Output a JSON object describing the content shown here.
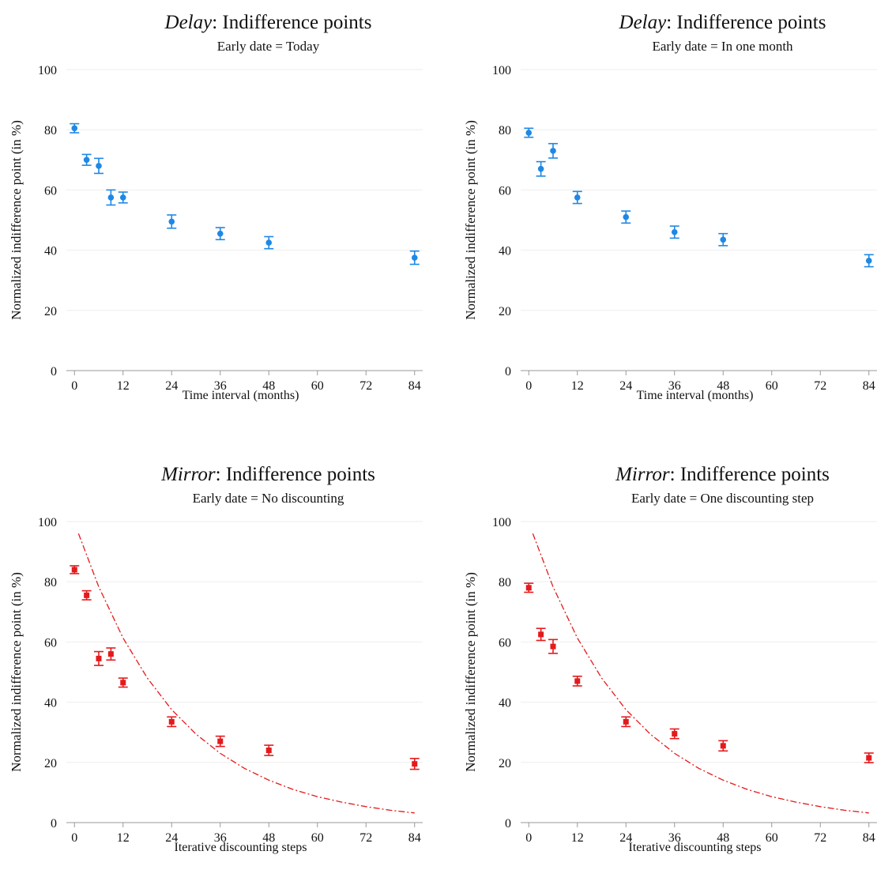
{
  "chart_data": [
    {
      "type": "scatter",
      "title_italic": "Delay",
      "title": ": Indifference points",
      "subtitle": "Early date = Today",
      "xlabel": "Time interval (months)",
      "ylabel": "Normalized indifference point (in %)",
      "xlim": [
        -2,
        86
      ],
      "ylim": [
        0,
        100
      ],
      "xticks": [
        0,
        12,
        24,
        36,
        48,
        60,
        72,
        84
      ],
      "yticks": [
        0,
        20,
        40,
        60,
        80,
        100
      ],
      "grid": true,
      "series": [
        {
          "color": "#1e88e5",
          "marker": "circle",
          "x": [
            0,
            3,
            6,
            9,
            12,
            24,
            36,
            48,
            84
          ],
          "values": [
            80.5,
            70,
            68,
            57.5,
            57.5,
            49.5,
            45.5,
            42.5,
            37.5
          ],
          "errors": [
            1.5,
            1.8,
            2.5,
            2.5,
            1.8,
            2.2,
            2,
            2,
            2.2
          ]
        }
      ]
    },
    {
      "type": "scatter",
      "title_italic": "Delay",
      "title": ": Indifference points",
      "subtitle": "Early date = In one month",
      "xlabel": "Time interval (months)",
      "ylabel": "Normalized indifference point (in %)",
      "xlim": [
        -2,
        86
      ],
      "ylim": [
        0,
        100
      ],
      "xticks": [
        0,
        12,
        24,
        36,
        48,
        60,
        72,
        84
      ],
      "yticks": [
        0,
        20,
        40,
        60,
        80,
        100
      ],
      "grid": true,
      "series": [
        {
          "color": "#1e88e5",
          "marker": "circle",
          "x": [
            0,
            3,
            6,
            12,
            24,
            36,
            48,
            84
          ],
          "values": [
            79,
            67,
            73,
            57.5,
            51,
            46,
            43.5,
            36.5
          ],
          "errors": [
            1.5,
            2.4,
            2.4,
            2,
            2,
            2,
            2,
            2
          ]
        }
      ]
    },
    {
      "type": "scatter",
      "title_italic": "Mirror",
      "title": ": Indifference points",
      "subtitle": "Early date = No discounting",
      "xlabel": "Iterative discounting steps",
      "ylabel": "Normalized indifference point (in %)",
      "xlim": [
        -2,
        86
      ],
      "ylim": [
        0,
        100
      ],
      "xticks": [
        0,
        12,
        24,
        36,
        48,
        60,
        72,
        84
      ],
      "yticks": [
        0,
        20,
        40,
        60,
        80,
        100
      ],
      "grid": true,
      "series": [
        {
          "color": "#e41a1c",
          "marker": "square",
          "x": [
            0,
            3,
            6,
            9,
            12,
            24,
            36,
            48,
            84
          ],
          "values": [
            84,
            75.5,
            54.5,
            56,
            46.5,
            33.5,
            27,
            24,
            19.5
          ],
          "errors": [
            1.3,
            1.5,
            2.3,
            2,
            1.5,
            1.6,
            1.7,
            1.7,
            1.8
          ]
        }
      ],
      "curve": {
        "color": "#e41a1c",
        "x": [
          1,
          6,
          12,
          18,
          24,
          30,
          36,
          42,
          48,
          54,
          60,
          66,
          72,
          78,
          84
        ],
        "values": [
          96,
          78.3,
          61.3,
          48,
          37.5,
          29.4,
          23,
          18,
          14.1,
          11,
          8.6,
          6.8,
          5.3,
          4.1,
          3.2
        ]
      }
    },
    {
      "type": "scatter",
      "title_italic": "Mirror",
      "title": ": Indifference points",
      "subtitle": "Early date = One discounting step",
      "xlabel": "Iterative discounting steps",
      "ylabel": "Normalized indifference point (in %)",
      "xlim": [
        -2,
        86
      ],
      "ylim": [
        0,
        100
      ],
      "xticks": [
        0,
        12,
        24,
        36,
        48,
        60,
        72,
        84
      ],
      "yticks": [
        0,
        20,
        40,
        60,
        80,
        100
      ],
      "grid": true,
      "series": [
        {
          "color": "#e41a1c",
          "marker": "square",
          "x": [
            0,
            3,
            6,
            12,
            24,
            36,
            48,
            84
          ],
          "values": [
            78,
            62.5,
            58.5,
            47,
            33.5,
            29.5,
            25.5,
            21.5
          ],
          "errors": [
            1.5,
            2,
            2.3,
            1.6,
            1.6,
            1.6,
            1.7,
            1.6
          ]
        }
      ],
      "curve": {
        "color": "#e41a1c",
        "x": [
          1,
          6,
          12,
          18,
          24,
          30,
          36,
          42,
          48,
          54,
          60,
          66,
          72,
          78,
          84
        ],
        "values": [
          96,
          78.3,
          61.3,
          48,
          37.5,
          29.4,
          23,
          18,
          14.1,
          11,
          8.6,
          6.8,
          5.3,
          4.1,
          3.2
        ]
      }
    }
  ]
}
